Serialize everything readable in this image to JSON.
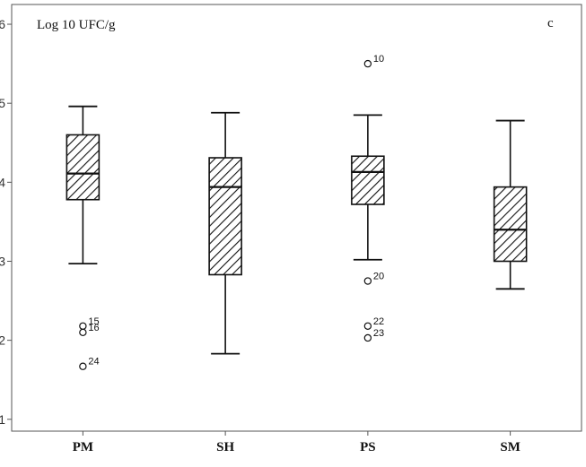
{
  "chart_data": {
    "type": "box",
    "ylabel": "Log 10 UFC/g",
    "panel_tag": "c",
    "ylim": [
      0.85,
      6.25
    ],
    "yticks": [
      1,
      2,
      3,
      4,
      5,
      6
    ],
    "ytick_labels": [
      "1",
      "2",
      "3",
      "4",
      "5",
      "6"
    ],
    "categories": [
      "PM",
      "SH",
      "PS",
      "SM"
    ],
    "boxes": [
      {
        "category": "PM",
        "whisker_low": 2.97,
        "q1": 3.78,
        "median": 4.11,
        "q3": 4.6,
        "whisker_high": 4.96,
        "outliers": [
          {
            "value": 2.18,
            "label": "15"
          },
          {
            "value": 2.1,
            "label": "16"
          },
          {
            "value": 1.67,
            "label": "24"
          }
        ]
      },
      {
        "category": "SH",
        "whisker_low": 1.83,
        "q1": 2.83,
        "median": 3.94,
        "q3": 4.31,
        "whisker_high": 4.88,
        "outliers": []
      },
      {
        "category": "PS",
        "whisker_low": 3.02,
        "q1": 3.72,
        "median": 4.13,
        "q3": 4.33,
        "whisker_high": 4.85,
        "outliers": [
          {
            "value": 5.5,
            "label": "10"
          },
          {
            "value": 2.75,
            "label": "20"
          },
          {
            "value": 2.18,
            "label": "22"
          },
          {
            "value": 2.03,
            "label": "23"
          }
        ]
      },
      {
        "category": "SM",
        "whisker_low": 2.65,
        "q1": 3.0,
        "median": 3.4,
        "q3": 3.94,
        "whisker_high": 4.78,
        "outliers": []
      }
    ],
    "box_fill": "diagonal-hatch",
    "colors": {
      "line": "#111111",
      "frame": "#555555",
      "background": "#ffffff"
    },
    "grid": false,
    "legend": "none"
  }
}
